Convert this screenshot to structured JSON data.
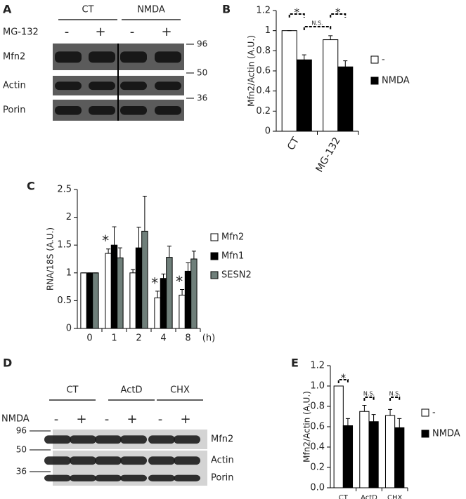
{
  "panel_letters": [
    "A",
    "B",
    "C",
    "D",
    "E"
  ],
  "blot_a": {
    "groups": [
      "CT",
      "NMDA"
    ],
    "treatment": "MG-132",
    "lanes": [
      "-",
      "+",
      "-",
      "+"
    ],
    "rows": [
      "Mfn2",
      "Actin",
      "Porin"
    ],
    "markers": [
      "96",
      "50",
      "36"
    ]
  },
  "blot_d": {
    "groups": [
      "CT",
      "ActD",
      "CHX"
    ],
    "treatment": "NMDA",
    "lanes": [
      "-",
      "+",
      "-",
      "+",
      "-",
      "+"
    ],
    "rows": [
      "Mfn2",
      "Actin",
      "Porin"
    ],
    "markers": [
      "96",
      "50",
      "36"
    ]
  },
  "chart_data": [
    {
      "type": "bar",
      "ylabel": "Mfn2/Actin (A.U.)",
      "categories": [
        "CT",
        "MG-132"
      ],
      "series": [
        {
          "name": "-",
          "color": "#ffffff",
          "values": [
            1,
            0.91
          ],
          "errors": [
            0,
            0.04
          ]
        },
        {
          "name": "NMDA",
          "color": "#000000",
          "values": [
            0.71,
            0.64
          ],
          "errors": [
            0.05,
            0.06
          ]
        }
      ],
      "ylim": [
        0,
        1.2
      ],
      "yticks": [
        0,
        0.2,
        0.4,
        0.6,
        0.8,
        1,
        1.2
      ],
      "annotations": [
        "*",
        "N.S.",
        "*"
      ]
    },
    {
      "type": "bar",
      "ylabel": "RNA/18S (A.U.)",
      "xlabel": "(h)",
      "categories": [
        "0",
        "1",
        "2",
        "4",
        "8"
      ],
      "series": [
        {
          "name": "Mfn2",
          "color": "#ffffff",
          "values": [
            1,
            1.35,
            1.0,
            0.55,
            0.6
          ],
          "errors": [
            0,
            0.08,
            0.06,
            0.12,
            0.1
          ]
        },
        {
          "name": "Mfn1",
          "color": "#000000",
          "values": [
            1,
            1.5,
            1.45,
            0.9,
            1.03
          ],
          "errors": [
            0,
            0.33,
            0.37,
            0.08,
            0.15
          ]
        },
        {
          "name": "SESN2",
          "color": "#6f7f7a",
          "values": [
            1,
            1.27,
            1.75,
            1.28,
            1.25
          ],
          "errors": [
            0,
            0.18,
            0.63,
            0.2,
            0.14
          ]
        }
      ],
      "ylim": [
        0,
        2.5
      ],
      "yticks": [
        0,
        0.5,
        1,
        1.5,
        2,
        2.5
      ],
      "annotations": [
        "*",
        "*",
        "*"
      ]
    },
    {
      "type": "bar",
      "ylabel": "Mfn2/Actin (A.U.)",
      "categories": [
        "CT",
        "ActD",
        "CHX"
      ],
      "series": [
        {
          "name": "-",
          "color": "#ffffff",
          "values": [
            1.0,
            0.75,
            0.71
          ],
          "errors": [
            0,
            0.06,
            0.06
          ]
        },
        {
          "name": "NMDA",
          "color": "#000000",
          "values": [
            0.61,
            0.65,
            0.59
          ],
          "errors": [
            0.07,
            0.07,
            0.09
          ]
        }
      ],
      "ylim": [
        0,
        1.2
      ],
      "yticks": [
        {
          "value": 0,
          "label": "0.0"
        },
        0.2,
        0.4,
        0.6,
        0.8,
        {
          "value": 1,
          "label": "1.0"
        },
        1.2
      ],
      "annotations": [
        "*",
        "N.S.",
        "N.S."
      ]
    }
  ]
}
